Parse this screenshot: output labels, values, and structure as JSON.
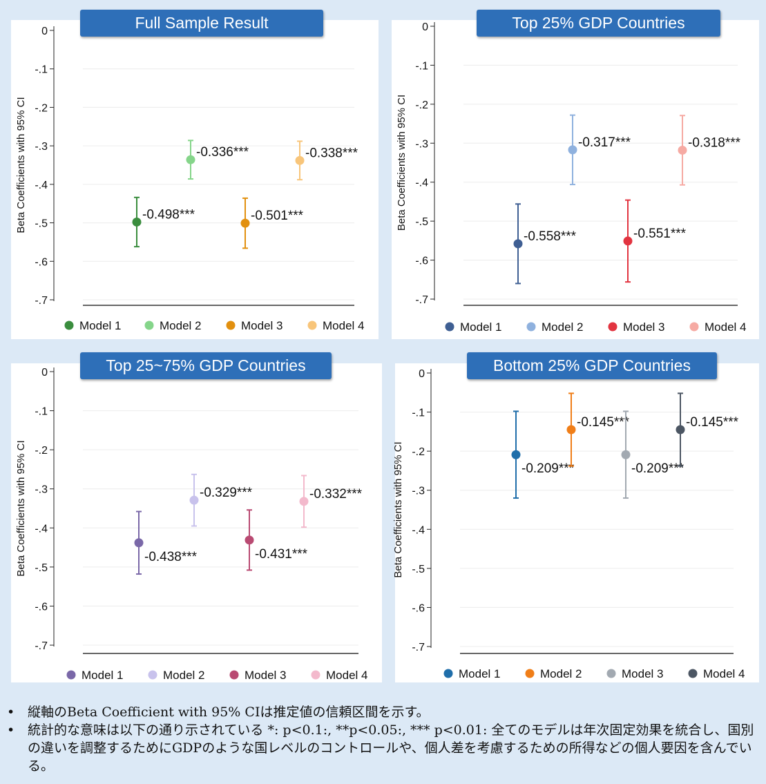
{
  "charts": [
    {
      "id": "full",
      "title": "Full Sample Result",
      "chart_data": {
        "type": "scatter",
        "ylabel": "Beta Coefficients with 95% CI",
        "ylim": [
          -0.72,
          0
        ],
        "yticks": [
          "0",
          "-.1",
          "-.2",
          "-.3",
          "-.4",
          "-.5",
          "-.6",
          "-.7"
        ],
        "series": [
          {
            "name": "Model 1",
            "value": -0.498,
            "ci": [
              -0.562,
              -0.434
            ],
            "label": "-0.498***",
            "color": "#3a8d3e",
            "label_side": "above"
          },
          {
            "name": "Model 2",
            "value": -0.336,
            "ci": [
              -0.386,
              -0.286
            ],
            "label": "-0.336***",
            "color": "#85d58a",
            "label_side": "above"
          },
          {
            "name": "Model 3",
            "value": -0.501,
            "ci": [
              -0.566,
              -0.436
            ],
            "label": "-0.501***",
            "color": "#e2900f",
            "label_side": "above"
          },
          {
            "name": "Model 4",
            "value": -0.338,
            "ci": [
              -0.388,
              -0.288
            ],
            "label": "-0.338***",
            "color": "#f8c57a",
            "label_side": "above"
          }
        ]
      }
    },
    {
      "id": "top25",
      "title": "Top 25% GDP Countries",
      "chart_data": {
        "type": "scatter",
        "ylabel": "Beta Coefficients with 95% CI",
        "ylim": [
          -0.72,
          0
        ],
        "yticks": [
          "0",
          "-.1",
          "-.2",
          "-.3",
          "-.4",
          "-.5",
          "-.6",
          "-.7"
        ],
        "series": [
          {
            "name": "Model 1",
            "value": -0.558,
            "ci": [
              -0.66,
              -0.456
            ],
            "label": "-0.558***",
            "color": "#3f5f93",
            "label_side": "above"
          },
          {
            "name": "Model 2",
            "value": -0.317,
            "ci": [
              -0.406,
              -0.228
            ],
            "label": "-0.317***",
            "color": "#8fb1de",
            "label_side": "above"
          },
          {
            "name": "Model 3",
            "value": -0.551,
            "ci": [
              -0.656,
              -0.446
            ],
            "label": "-0.551***",
            "color": "#e23440",
            "label_side": "above"
          },
          {
            "name": "Model 4",
            "value": -0.318,
            "ci": [
              -0.407,
              -0.229
            ],
            "label": "-0.318***",
            "color": "#f6aaa3",
            "label_side": "above"
          }
        ]
      }
    },
    {
      "id": "mid",
      "title": "Top 25~75% GDP Countries",
      "chart_data": {
        "type": "scatter",
        "ylabel": "Beta Coefficients with 95% CI",
        "ylim": [
          -0.72,
          0
        ],
        "yticks": [
          "0",
          "-.1",
          "-.2",
          "-.3",
          "-.4",
          "-.5",
          "-.6",
          "-.7"
        ],
        "series": [
          {
            "name": "Model 1",
            "value": -0.438,
            "ci": [
              -0.518,
              -0.358
            ],
            "label": "-0.438***",
            "color": "#7a68a8",
            "label_side": "below"
          },
          {
            "name": "Model 2",
            "value": -0.329,
            "ci": [
              -0.395,
              -0.263
            ],
            "label": "-0.329***",
            "color": "#c8c2ec",
            "label_side": "above"
          },
          {
            "name": "Model 3",
            "value": -0.431,
            "ci": [
              -0.508,
              -0.354
            ],
            "label": "-0.431***",
            "color": "#b94a72",
            "label_side": "below"
          },
          {
            "name": "Model 4",
            "value": -0.332,
            "ci": [
              -0.398,
              -0.266
            ],
            "label": "-0.332***",
            "color": "#f3b9cc",
            "label_side": "above"
          }
        ]
      }
    },
    {
      "id": "bottom25",
      "title": "Bottom 25% GDP Countries",
      "chart_data": {
        "type": "scatter",
        "ylabel": "Beta Coefficients with 95% CI",
        "ylim": [
          -0.72,
          0
        ],
        "yticks": [
          "0",
          "-.1",
          "-.2",
          "-.3",
          "-.4",
          "-.5",
          "-.6",
          "-.7"
        ],
        "series": [
          {
            "name": "Model 1",
            "value": -0.209,
            "ci": [
              -0.32,
              -0.098
            ],
            "label": "-0.209***",
            "color": "#1f6eaa",
            "label_side": "below"
          },
          {
            "name": "Model 2",
            "value": -0.145,
            "ci": [
              -0.238,
              -0.052
            ],
            "label": "-0.145***",
            "color": "#f07e18",
            "label_side": "above"
          },
          {
            "name": "Model 3",
            "value": -0.209,
            "ci": [
              -0.32,
              -0.098
            ],
            "label": "-0.209***",
            "color": "#a2a9b1",
            "label_side": "below"
          },
          {
            "name": "Model 4",
            "value": -0.145,
            "ci": [
              -0.238,
              -0.052
            ],
            "label": "-0.145***",
            "color": "#4c5663",
            "label_side": "above"
          }
        ]
      }
    }
  ],
  "notes": [
    "縦軸のBeta Coefficient with 95% CIは推定値の信頼区間を示す。",
    "統計的な意味は以下の通り示されている *: p<0.1:, **p<0.05:, *** p<0.01: 全てのモデルは年次固定効果を統合し、国別の違いを調整するためにGDPのような国レベルのコントロールや、個人差を考慮するための所得などの個人要因を含んでいる。"
  ],
  "bullet_symbol": "•"
}
